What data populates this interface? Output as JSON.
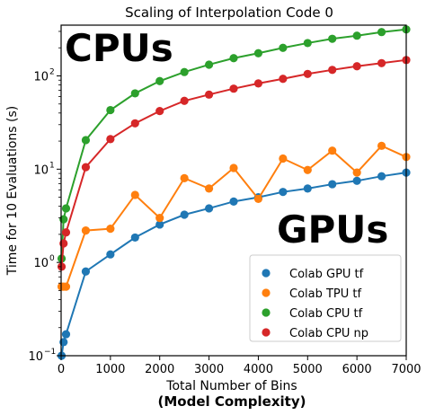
{
  "chart_data": {
    "type": "scatter",
    "title": "Scaling of Interpolation Code 0",
    "xlabel": "Total Number of Bins",
    "xlabel_sub": "(Model Complexity)",
    "ylabel": "Time for 10 Evaluations (s)",
    "xlim": [
      0,
      7000
    ],
    "ylim": [
      0.1,
      350
    ],
    "yscale": "log",
    "x_ticks": [
      0,
      1000,
      2000,
      3000,
      4000,
      5000,
      6000,
      7000
    ],
    "x_tick_labels": [
      "0",
      "1000",
      "2000",
      "3000",
      "4000",
      "5000",
      "6000",
      "7000"
    ],
    "y_ticks": [
      0.1,
      1,
      10,
      100
    ],
    "y_tick_labels": [
      "10",
      "10",
      "10",
      "10"
    ],
    "y_tick_exponents": [
      "−1",
      "0",
      "1",
      "2"
    ],
    "grid": false,
    "legend_position": "lower right",
    "annotations": [
      "CPUs",
      "GPUs"
    ],
    "series": [
      {
        "name": "Colab GPU tf",
        "color": "#1f77b4",
        "x": [
          10,
          50,
          100,
          500,
          1000,
          1500,
          2000,
          2500,
          3000,
          3500,
          4000,
          4500,
          5000,
          5500,
          6000,
          6500,
          7000
        ],
        "y": [
          0.1,
          0.14,
          0.17,
          0.8,
          1.22,
          1.85,
          2.55,
          3.25,
          3.8,
          4.5,
          5.0,
          5.7,
          6.2,
          6.9,
          7.5,
          8.4,
          9.2
        ]
      },
      {
        "name": "Colab TPU  tf",
        "color": "#ff7f0e",
        "x": [
          10,
          50,
          100,
          500,
          1000,
          1500,
          2000,
          2500,
          3000,
          3500,
          4000,
          4500,
          5000,
          5500,
          6000,
          6500,
          7000
        ],
        "y": [
          0.55,
          0.55,
          0.55,
          2.2,
          2.3,
          5.3,
          3.0,
          8.0,
          6.2,
          10.3,
          4.8,
          13.0,
          9.8,
          15.8,
          9.2,
          17.8,
          13.5
        ]
      },
      {
        "name": "Colab CPU tf",
        "color": "#2ca02c",
        "x": [
          10,
          50,
          100,
          500,
          1000,
          1500,
          2000,
          2500,
          3000,
          3500,
          4000,
          4500,
          5000,
          5500,
          6000,
          6500,
          7000
        ],
        "y": [
          1.1,
          2.9,
          3.8,
          20.5,
          43,
          65,
          88,
          110,
          132,
          155,
          175,
          200,
          225,
          250,
          270,
          295,
          315
        ]
      },
      {
        "name": "Colab CPU np",
        "color": "#d62728",
        "x": [
          10,
          50,
          100,
          500,
          1000,
          1500,
          2000,
          2500,
          3000,
          3500,
          4000,
          4500,
          5000,
          5500,
          6000,
          6500,
          7000
        ],
        "y": [
          0.9,
          1.6,
          2.1,
          10.5,
          21,
          31,
          42,
          54,
          63,
          73,
          83,
          93,
          105,
          116,
          127,
          137,
          148
        ]
      }
    ]
  }
}
